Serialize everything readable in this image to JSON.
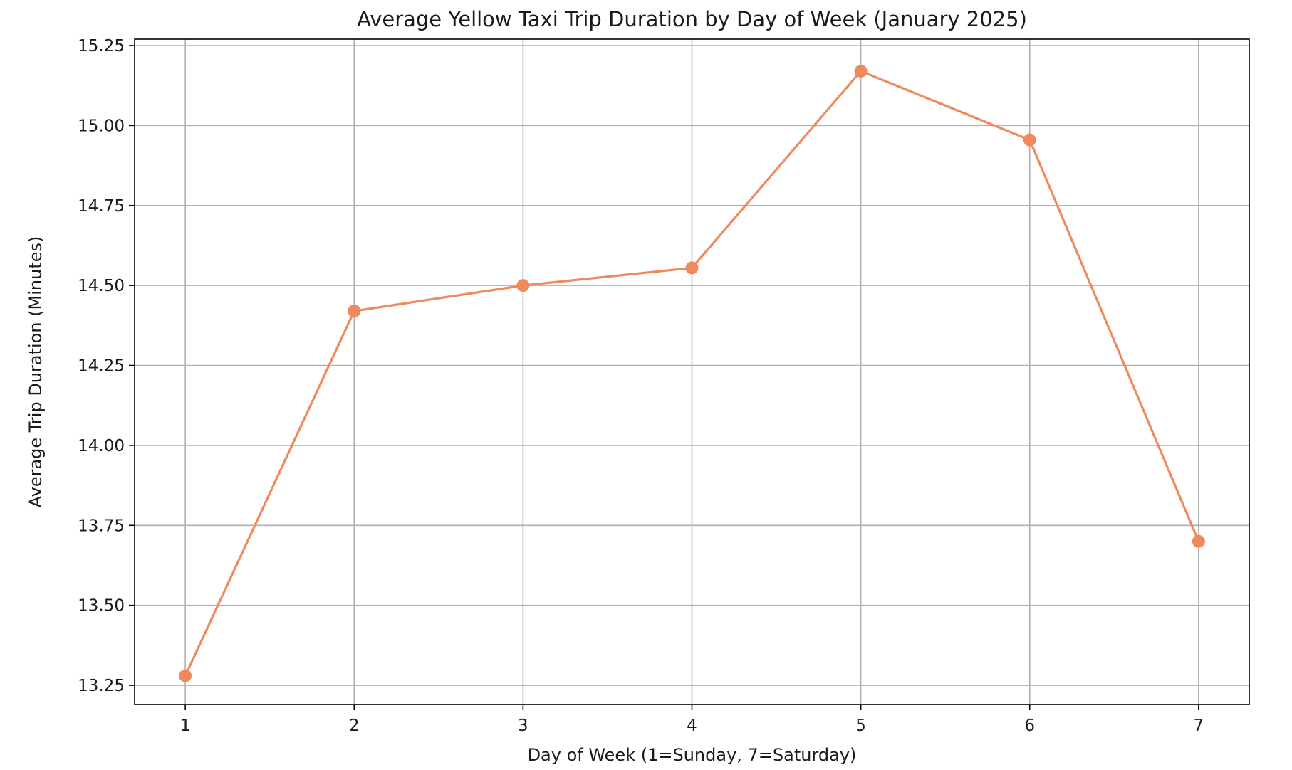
{
  "chart_data": {
    "type": "line",
    "title": "Average Yellow Taxi Trip Duration by Day of Week (January 2025)",
    "xlabel": "Day of Week (1=Sunday, 7=Saturday)",
    "ylabel": "Average Trip Duration (Minutes)",
    "x": [
      1,
      2,
      3,
      4,
      5,
      6,
      7
    ],
    "xticks": [
      "1",
      "2",
      "3",
      "4",
      "5",
      "6",
      "7"
    ],
    "yticks": [
      "13.25",
      "13.50",
      "13.75",
      "14.00",
      "14.25",
      "14.50",
      "14.75",
      "15.00",
      "15.25"
    ],
    "ytick_values": [
      13.25,
      13.5,
      13.75,
      14.0,
      14.25,
      14.5,
      14.75,
      15.0,
      15.25
    ],
    "xlim": [
      0.7,
      7.3
    ],
    "ylim": [
      13.19,
      15.27
    ],
    "grid": true,
    "legend": "none",
    "series": [
      {
        "values": [
          13.28,
          14.42,
          14.5,
          14.555,
          15.17,
          14.955,
          13.7
        ],
        "color": "#f0895c",
        "marker": "circle"
      }
    ],
    "colors": {
      "line": "#f0895c",
      "grid": "#b0b0b0",
      "frame": "#000000",
      "text": "#1a1a1a"
    }
  }
}
